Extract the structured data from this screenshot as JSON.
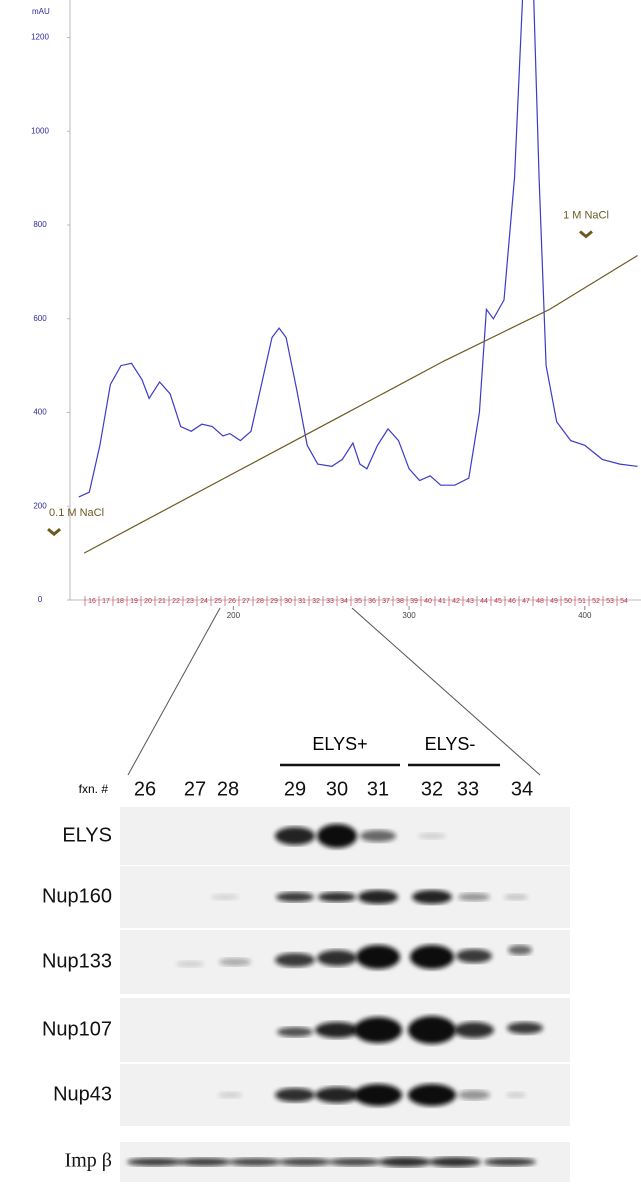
{
  "chart_data": {
    "type": "line",
    "y_axis_label": "mAU",
    "x": [
      112,
      118,
      124,
      130,
      136,
      142,
      148,
      152,
      158,
      164,
      170,
      176,
      182,
      188,
      194,
      198,
      204,
      210,
      216,
      222,
      226,
      230,
      236,
      242,
      248,
      256,
      262,
      268,
      272,
      276,
      282,
      288,
      294,
      300,
      306,
      312,
      318,
      326,
      334,
      340,
      344,
      348,
      354,
      360,
      366,
      370,
      374,
      378,
      384,
      392,
      400,
      410,
      420,
      430
    ],
    "series": [
      {
        "color": "#3b3bc8",
        "values": [
          220,
          230,
          330,
          460,
          500,
          505,
          470,
          430,
          465,
          440,
          370,
          360,
          375,
          370,
          350,
          355,
          340,
          360,
          460,
          560,
          580,
          560,
          450,
          330,
          290,
          285,
          300,
          335,
          290,
          280,
          330,
          365,
          340,
          280,
          255,
          265,
          245,
          245,
          260,
          400,
          620,
          600,
          640,
          900,
          1400,
          1400,
          900,
          500,
          380,
          340,
          330,
          300,
          290,
          285
        ]
      },
      {
        "color": "#6b5a20",
        "x": [
          115,
          200,
          260,
          320,
          380,
          430
        ],
        "values": [
          100,
          270,
          390,
          510,
          620,
          735
        ]
      }
    ],
    "xlim": [
      107,
      432
    ],
    "xticks": [
      200,
      300,
      400
    ],
    "ylim": [
      0,
      1280
    ],
    "yticks": [
      0,
      200,
      400,
      600,
      800,
      1000,
      1200
    ],
    "annotations": [
      {
        "text": "0.1 M NaCl",
        "x": 115,
        "y": 100
      },
      {
        "text": "1 M NaCl",
        "x": 430,
        "y": 735
      }
    ],
    "fractions": [
      "16",
      "17",
      "18",
      "19",
      "20",
      "21",
      "22",
      "23",
      "24",
      "25",
      "26",
      "27",
      "28",
      "29",
      "30",
      "31",
      "32",
      "33",
      "34",
      "35",
      "36",
      "37",
      "38",
      "39",
      "40",
      "41",
      "42",
      "43",
      "44",
      "45",
      "46",
      "47",
      "48",
      "49",
      "50",
      "51",
      "52",
      "53",
      "54"
    ]
  },
  "blot": {
    "fraction_header": "fxn. #",
    "lanes": [
      "26",
      "27",
      "28",
      "29",
      "30",
      "31",
      "32",
      "33",
      "34"
    ],
    "groups": [
      "ELYS+",
      "ELYS-"
    ],
    "rows": [
      "ELYS",
      "Nup160",
      "Nup133",
      "Nup107",
      "Nup43",
      "Imp β"
    ]
  }
}
